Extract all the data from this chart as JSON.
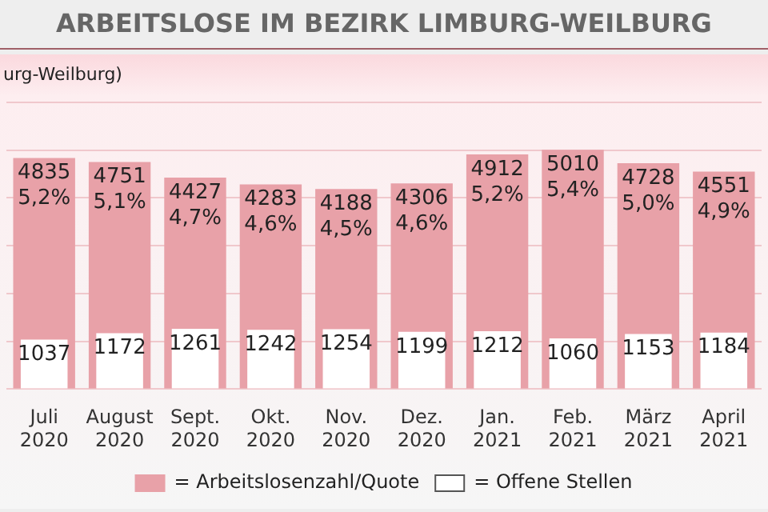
{
  "chart_data": {
    "type": "bar",
    "title": "ARBEITSLOSE IM BEZIRK LIMBURG-WEILBURG",
    "subtitle": "urg-Weilburg)",
    "grid": "y",
    "legend": "bottom",
    "data_labels": true,
    "categories": [
      "Juli 2020",
      "August 2020",
      "Sept. 2020",
      "Okt. 2020",
      "Nov. 2020",
      "Dez. 2020",
      "Jan. 2021",
      "Feb. 2021",
      "März 2021",
      "April 2021"
    ],
    "series": [
      {
        "name": "= Arbeitslosenzahl/Quote",
        "color": "#e8a1a8",
        "values": [
          4835,
          4751,
          4427,
          4283,
          4188,
          4306,
          4912,
          5010,
          4728,
          4551
        ],
        "value_labels": [
          "4835\n5,2%",
          "4751\n5,1%",
          "4427\n4,7%",
          "4283\n4,6%",
          "4188\n4,5%",
          "4306\n4,6%",
          "4912\n5,2%",
          "5010\n5,4%",
          "4728\n5,0%",
          "4551\n4,9%"
        ]
      },
      {
        "name": "= Offene Stellen",
        "color": "#ffffff",
        "values": [
          1037,
          1172,
          1261,
          1242,
          1254,
          1199,
          1212,
          1060,
          1153,
          1184
        ]
      }
    ]
  }
}
